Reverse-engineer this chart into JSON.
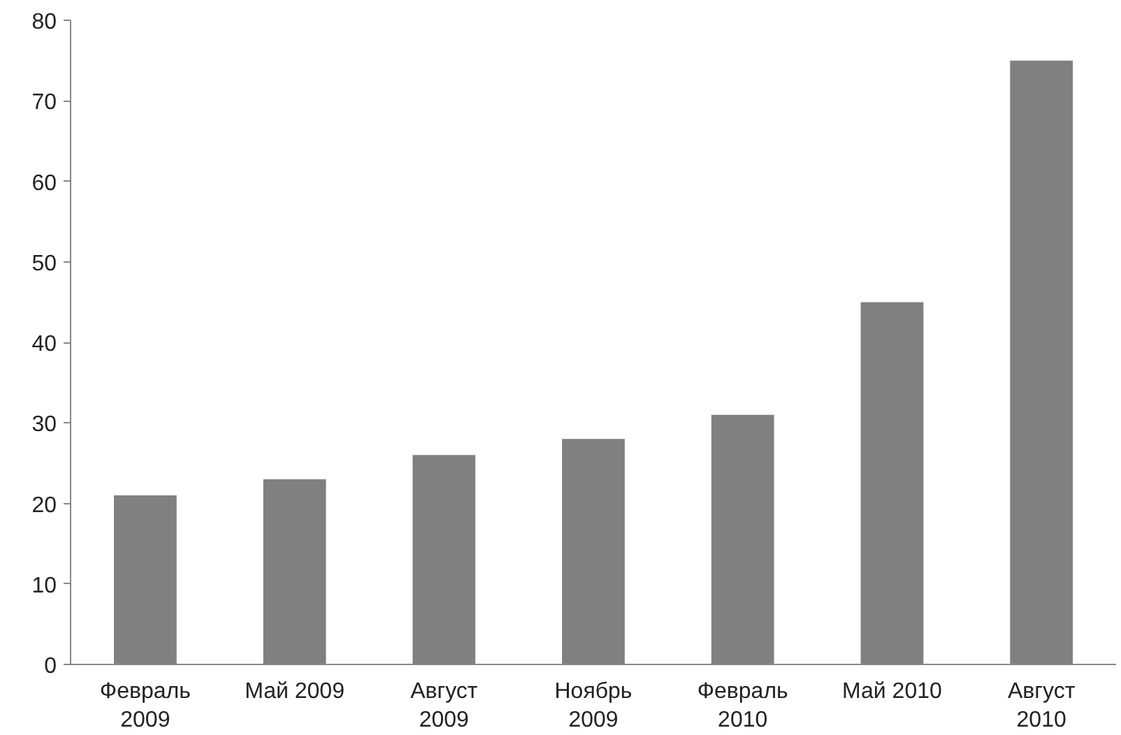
{
  "chart_data": {
    "type": "bar",
    "categories": [
      "Февраль\n2009",
      "Май 2009",
      "Август\n2009",
      "Ноябрь\n2009",
      "Февраль\n2010",
      "Май 2010",
      "Август\n2010"
    ],
    "values": [
      21,
      23,
      26,
      28,
      31,
      45,
      75
    ],
    "color": "#808080",
    "ylim": [
      0,
      80
    ],
    "yticks": [
      0,
      10,
      20,
      30,
      40,
      50,
      60,
      70,
      80
    ],
    "grid": false
  }
}
